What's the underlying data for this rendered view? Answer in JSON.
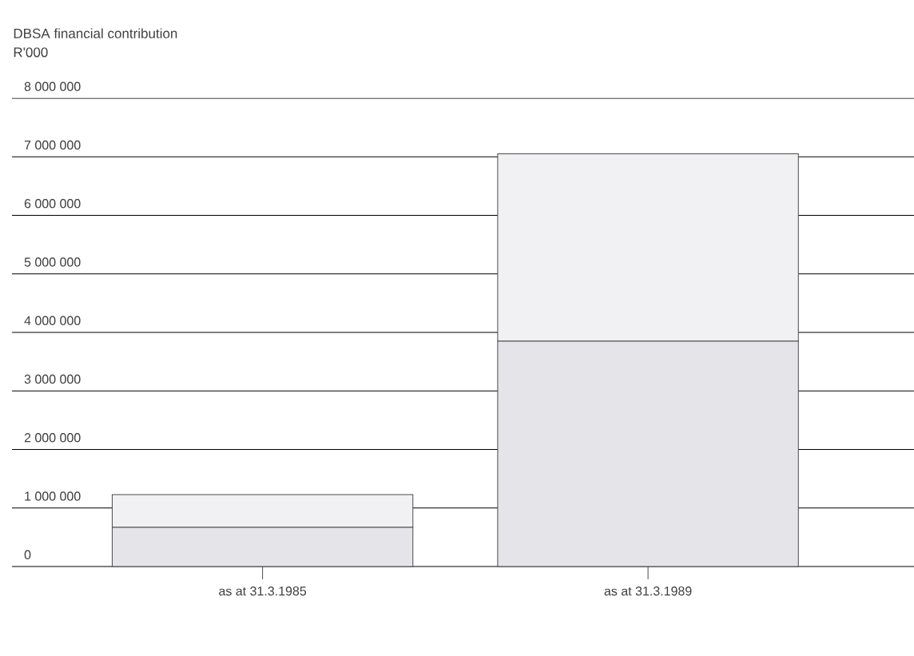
{
  "chart_data": {
    "type": "bar",
    "title": "DBSA financial contribution",
    "ylabel": "R'000",
    "categories": [
      "as at 31.3.1985",
      "as at 31.3.1989"
    ],
    "stacked": true,
    "series": [
      {
        "color": "#e4e4e9",
        "values": [
          670000,
          3850000
        ]
      },
      {
        "color": "#f1f1f4",
        "values": [
          560000,
          3200000
        ]
      }
    ],
    "ylim": [
      0,
      8000000
    ],
    "yticks": [
      {
        "value": 0,
        "label": "0"
      },
      {
        "value": 1000000,
        "label": "1 000 000"
      },
      {
        "value": 2000000,
        "label": "2 000 000"
      },
      {
        "value": 3000000,
        "label": "3 000 000"
      },
      {
        "value": 4000000,
        "label": "4 000 000"
      },
      {
        "value": 5000000,
        "label": "5 000 000"
      },
      {
        "value": 6000000,
        "label": "6 000 000"
      },
      {
        "value": 7000000,
        "label": "7 000 000"
      },
      {
        "value": 8000000,
        "label": "8 000 000"
      }
    ],
    "grid": "y"
  }
}
